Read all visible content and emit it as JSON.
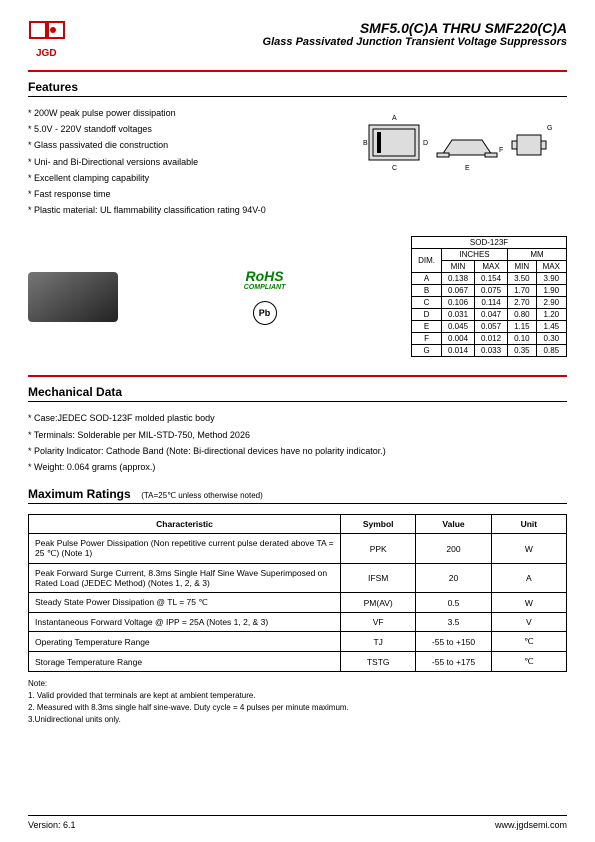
{
  "header": {
    "logo_text": "JGD",
    "title": "SMF5.0(C)A THRU SMF220(C)A",
    "subtitle": "Glass Passivated Junction Transient Voltage Suppressors"
  },
  "features": {
    "heading": "Features",
    "items": [
      "200W peak pulse power dissipation",
      "5.0V - 220V standoff voltages",
      "Glass passivated die construction",
      "Uni- and Bi-Directional versions available",
      "Excellent clamping capability",
      "Fast response time",
      "Plastic material: UL flammability classification rating 94V-0"
    ]
  },
  "rohs": {
    "main": "RoHS",
    "sub": "COMPLIANT"
  },
  "ul": "Pb",
  "dim_table": {
    "title": "SOD-123F",
    "dim_label": "DIM.",
    "col_groups": [
      "INCHES",
      "MM"
    ],
    "sub_cols": [
      "MIN",
      "MAX",
      "MIN",
      "MAX"
    ],
    "rows": [
      [
        "A",
        "0.138",
        "0.154",
        "3.50",
        "3.90"
      ],
      [
        "B",
        "0.067",
        "0.075",
        "1.70",
        "1.90"
      ],
      [
        "C",
        "0.106",
        "0.114",
        "2.70",
        "2.90"
      ],
      [
        "D",
        "0.031",
        "0.047",
        "0.80",
        "1.20"
      ],
      [
        "E",
        "0.045",
        "0.057",
        "1.15",
        "1.45"
      ],
      [
        "F",
        "0.004",
        "0.012",
        "0.10",
        "0.30"
      ],
      [
        "G",
        "0.014",
        "0.033",
        "0.35",
        "0.85"
      ]
    ]
  },
  "mechanical": {
    "heading": "Mechanical Data",
    "items": [
      "Case:JEDEC SOD-123F molded plastic body",
      "Terminals: Solderable per MIL-STD-750, Method 2026",
      "Polarity Indicator: Cathode Band (Note: Bi-directional devices have no polarity indicator.)",
      "Weight: 0.064 grams (approx.)"
    ]
  },
  "ratings": {
    "heading": "Maximum Ratings",
    "condition": "(TA=25℃ unless otherwise noted)",
    "columns": [
      "Characteristic",
      "Symbol",
      "Value",
      "Unit"
    ],
    "rows": [
      {
        "char": "Peak Pulse Power Dissipation\n(Non repetitive current pulse derated above TA = 25 ℃) (Note 1)",
        "sym": "PPK",
        "val": "200",
        "unit": "W"
      },
      {
        "char": "Peak Forward Surge Current, 8.3ms Single Half Sine Wave Superimposed on Rated Load (JEDEC Method) (Notes 1, 2, & 3)",
        "sym": "IFSM",
        "val": "20",
        "unit": "A"
      },
      {
        "char": "Steady State Power Dissipation @ TL = 75 ℃",
        "sym": "PM(AV)",
        "val": "0.5",
        "unit": "W"
      },
      {
        "char": "Instantaneous Forward Voltage @ IPP = 25A  (Notes 1, 2, & 3)",
        "sym": "VF",
        "val": "3.5",
        "unit": "V"
      },
      {
        "char": "Operating Temperature Range",
        "sym": "TJ",
        "val": "-55 to +150",
        "unit": "℃"
      },
      {
        "char": "Storage Temperature Range",
        "sym": "TSTG",
        "val": "-55 to +175",
        "unit": "℃"
      }
    ]
  },
  "notes": {
    "heading": "Note:",
    "items": [
      "1. Valid provided that terminals are kept at ambient temperature.",
      "2. Measured with 8.3ms single half sine-wave. Duty cycle = 4 pulses per minute maximum.",
      "3.Unidirectional units only."
    ]
  },
  "footer": {
    "version": "Version: 6.1",
    "url": "www.jgdsemi.com"
  }
}
